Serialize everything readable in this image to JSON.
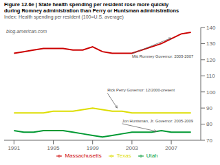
{
  "chart_data": {
    "type": "line",
    "title": "Figure 12.6e | State health spending per resident rose more quickly\nduring Romney administration than Perry or Huntsman administrations",
    "subtitle": "Index: Health spending per resident (100=U.S. average)",
    "x": [
      1991,
      1992,
      1993,
      1994,
      1995,
      1996,
      1997,
      1998,
      1999,
      2000,
      2001,
      2002,
      2003,
      2004,
      2005,
      2006,
      2007,
      2008,
      2009
    ],
    "series": [
      {
        "name": "Massachusetts",
        "color": "#cc0000",
        "values": [
          124,
          125,
          126,
          127,
          127,
          127,
          126,
          126,
          128,
          125,
          124,
          124,
          124,
          126,
          128,
          130,
          133,
          136,
          137
        ]
      },
      {
        "name": "Texas",
        "color": "#dddd00",
        "values": [
          87,
          87,
          87,
          87,
          88,
          88,
          88,
          89,
          90,
          89,
          88,
          88,
          87,
          87,
          87,
          87,
          87,
          87,
          87
        ]
      },
      {
        "name": "Utah",
        "color": "#009933",
        "values": [
          76,
          75,
          75,
          76,
          76,
          76,
          75,
          74,
          73,
          72,
          73,
          74,
          75,
          75,
          75,
          76,
          75,
          75,
          75
        ]
      }
    ],
    "xlim": [
      1990,
      2010
    ],
    "xticks": [
      1991,
      1995,
      1999,
      2003,
      2007
    ],
    "ylim": [
      70,
      140
    ],
    "yticks": [
      70,
      80,
      90,
      100,
      110,
      120,
      130,
      140
    ],
    "grid": false,
    "legend": "bottom",
    "annotations": [
      {
        "text": "blog.american.com"
      },
      {
        "text": "Mitt Romney Governor: 2003-2007",
        "x": 2007.0,
        "y": 133.5,
        "text_x": 2003.0,
        "text_y": 122
      },
      {
        "text": "Rick Perry Governor: 12/2000-present",
        "x": 2001.5,
        "y": 90.0,
        "text_x": 2000.5,
        "text_y": 101
      },
      {
        "text": "Jon Huntsman, Jr. Governor: 2005-2009",
        "x": 2005.5,
        "y": 75.5,
        "text_x": 2002.0,
        "text_y": 82
      }
    ]
  }
}
